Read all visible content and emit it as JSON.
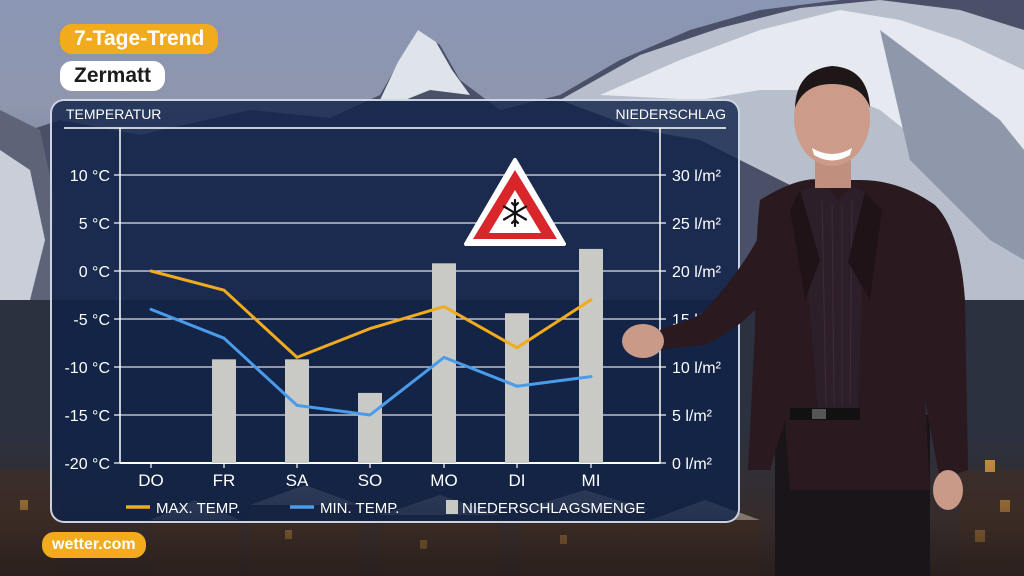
{
  "overlay": {
    "trend_label": "7-Tage-Trend",
    "location": "Zermatt",
    "brand": "wetter.com"
  },
  "warning": {
    "icon": "snowflake-warning-icon"
  },
  "colors": {
    "accent": "#f2ab1d",
    "max_temp": "#f2ab1d",
    "min_temp": "#4a9bea",
    "bars": "#c9c9c5",
    "panel": "#0e2248"
  },
  "chart_data": {
    "type": "bar+line",
    "categories": [
      "DO",
      "FR",
      "SA",
      "SO",
      "MO",
      "DI",
      "MI"
    ],
    "left_axis": {
      "label": "TEMPERATUR",
      "range": [
        -20,
        10
      ],
      "ticks": [
        "10 °C",
        "5 °C",
        "0 °C",
        "-5 °C",
        "-10 °C",
        "-15 °C",
        "-20 °C"
      ],
      "tick_values": [
        10,
        5,
        0,
        -5,
        -10,
        -15,
        -20
      ]
    },
    "right_axis": {
      "label": "NIEDERSCHLAG",
      "range": [
        0,
        30
      ],
      "ticks": [
        "30 l/m²",
        "25 l/m²",
        "20 l/m²",
        "15 l/m²",
        "10 l/m²",
        "5 l/m²",
        "0 l/m²"
      ],
      "tick_values": [
        30,
        25,
        20,
        15,
        10,
        5,
        0
      ]
    },
    "series": [
      {
        "name": "MAX. TEMP.",
        "kind": "line",
        "axis": "left",
        "values": [
          0,
          -2,
          -9,
          -6,
          -3.7,
          -8,
          -3
        ]
      },
      {
        "name": "MIN. TEMP.",
        "kind": "line",
        "axis": "left",
        "values": [
          -4,
          -7,
          -14,
          -15,
          -9,
          -12,
          -11
        ]
      },
      {
        "name": "NIEDERSCHLAGSMENGE",
        "kind": "bar",
        "axis": "right",
        "values": [
          0,
          10.8,
          10.8,
          7.3,
          20.8,
          15.6,
          22.3
        ]
      }
    ],
    "grid": true,
    "legend_placement": "bottom"
  }
}
